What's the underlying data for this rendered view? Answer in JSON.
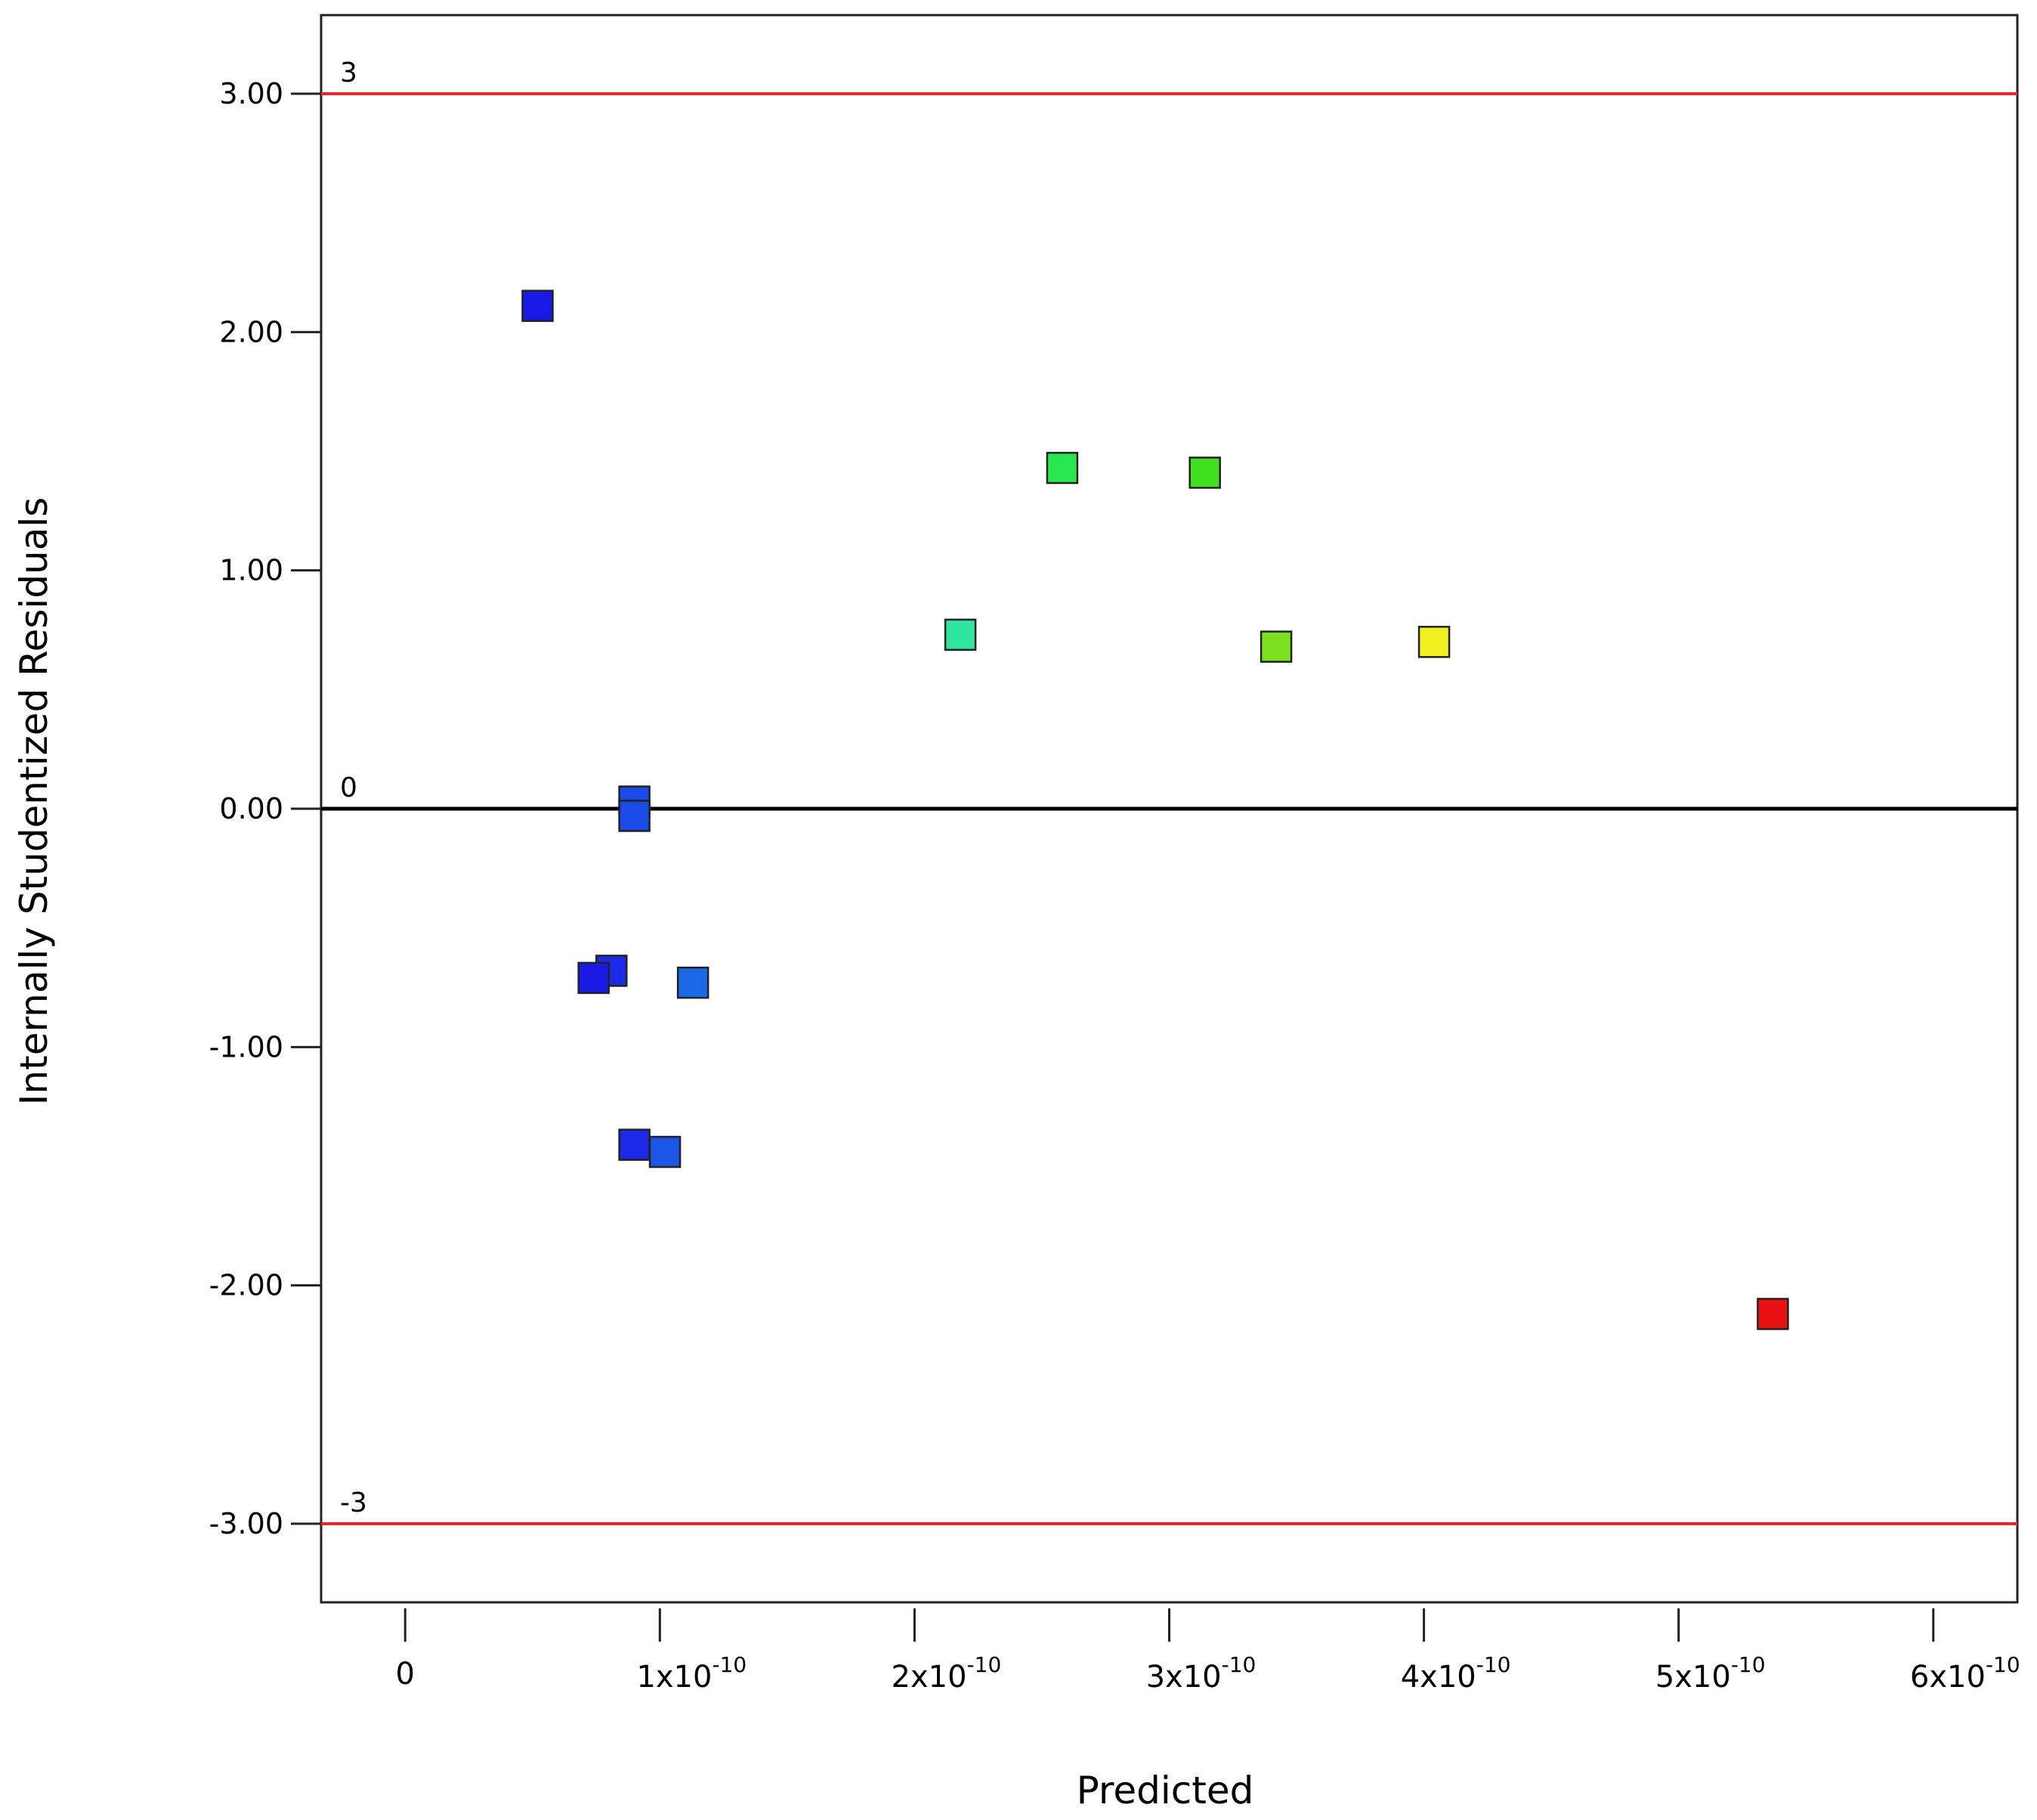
{
  "chart_data": {
    "type": "scatter",
    "title": "",
    "xlabel": "Predicted",
    "ylabel": "Internally Studentized Residuals",
    "xlim": [
      -3.3e-11,
      6.33e-10
    ],
    "ylim": [
      -3.33,
      3.33
    ],
    "xticks": [
      {
        "value": 0,
        "mantissa": "0",
        "exp": ""
      },
      {
        "value": 1e-10,
        "mantissa": "1x10",
        "exp": "-10"
      },
      {
        "value": 2e-10,
        "mantissa": "2x10",
        "exp": "-10"
      },
      {
        "value": 3e-10,
        "mantissa": "3x10",
        "exp": "-10"
      },
      {
        "value": 4e-10,
        "mantissa": "4x10",
        "exp": "-10"
      },
      {
        "value": 5e-10,
        "mantissa": "5x10",
        "exp": "-10"
      },
      {
        "value": 6e-10,
        "mantissa": "6x10",
        "exp": "-10"
      }
    ],
    "yticks": [
      {
        "value": 3,
        "label": "3.00"
      },
      {
        "value": 2,
        "label": "2.00"
      },
      {
        "value": 1,
        "label": "1.00"
      },
      {
        "value": 0,
        "label": "0.00"
      },
      {
        "value": -1,
        "label": "-1.00"
      },
      {
        "value": -2,
        "label": "-2.00"
      },
      {
        "value": -3,
        "label": "-3.00"
      }
    ],
    "reference_lines": [
      {
        "y": 3,
        "label": "3",
        "color": "#e8262b"
      },
      {
        "y": 0,
        "label": "0",
        "color": "#000000"
      },
      {
        "y": -3,
        "label": "-3",
        "color": "#e8262b"
      }
    ],
    "grid": false,
    "marker": "square",
    "points": [
      {
        "x": 5.2e-11,
        "y": 2.11,
        "color": "#1a1ae6"
      },
      {
        "x": 9e-11,
        "y": 0.03,
        "color": "#1a4ae8"
      },
      {
        "x": 9e-11,
        "y": -0.03,
        "color": "#1a4ae8"
      },
      {
        "x": 8.1e-11,
        "y": -0.68,
        "color": "#1a2ae6"
      },
      {
        "x": 7.4e-11,
        "y": -0.71,
        "color": "#1a1ae6"
      },
      {
        "x": 1.13e-10,
        "y": -0.73,
        "color": "#1a6ae8"
      },
      {
        "x": 9e-11,
        "y": -1.41,
        "color": "#1a2ae6"
      },
      {
        "x": 1.02e-10,
        "y": -1.44,
        "color": "#1a55e8"
      },
      {
        "x": 2.18e-10,
        "y": 0.73,
        "color": "#2ee6a0"
      },
      {
        "x": 2.58e-10,
        "y": 1.43,
        "color": "#28e650"
      },
      {
        "x": 3.14e-10,
        "y": 1.41,
        "color": "#40e020"
      },
      {
        "x": 3.42e-10,
        "y": 0.68,
        "color": "#7be020"
      },
      {
        "x": 4.04e-10,
        "y": 0.7,
        "color": "#f0f020"
      },
      {
        "x": 5.37e-10,
        "y": -2.12,
        "color": "#e81010"
      }
    ]
  }
}
